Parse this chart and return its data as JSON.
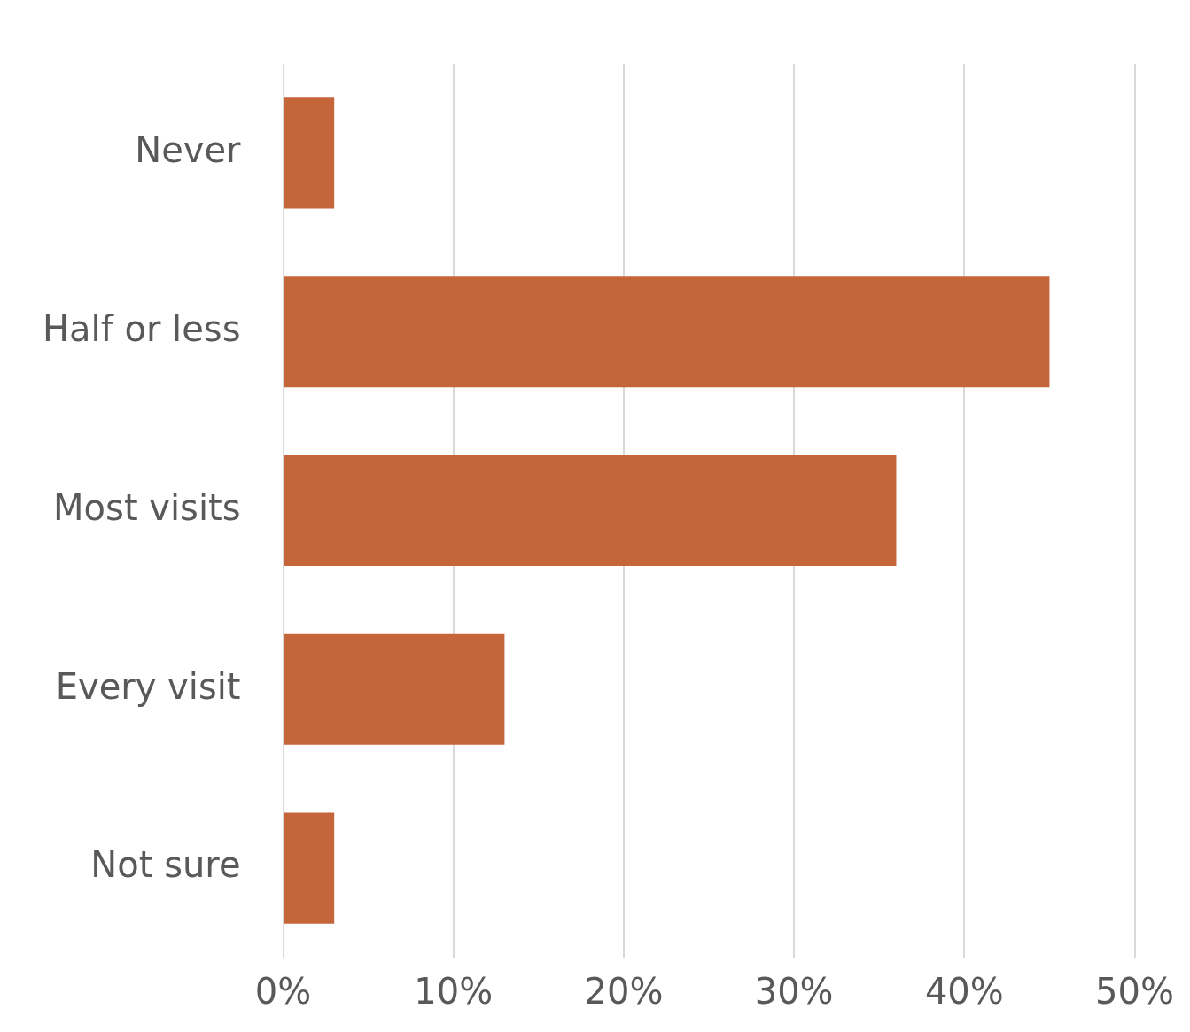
{
  "chart_data": {
    "type": "bar",
    "orientation": "horizontal",
    "categories": [
      "Never",
      "Half or less",
      "Most visits",
      "Every visit",
      "Not sure"
    ],
    "values": [
      3,
      45,
      36,
      13,
      3
    ],
    "color": "#c5653a",
    "xlim": [
      0,
      50
    ],
    "xticks": [
      {
        "value": 0,
        "label": "0%"
      },
      {
        "value": 10,
        "label": "10%"
      },
      {
        "value": 20,
        "label": "20%"
      },
      {
        "value": 30,
        "label": "30%"
      },
      {
        "value": 40,
        "label": "40%"
      },
      {
        "value": 50,
        "label": "50%"
      }
    ],
    "grid": "x"
  }
}
